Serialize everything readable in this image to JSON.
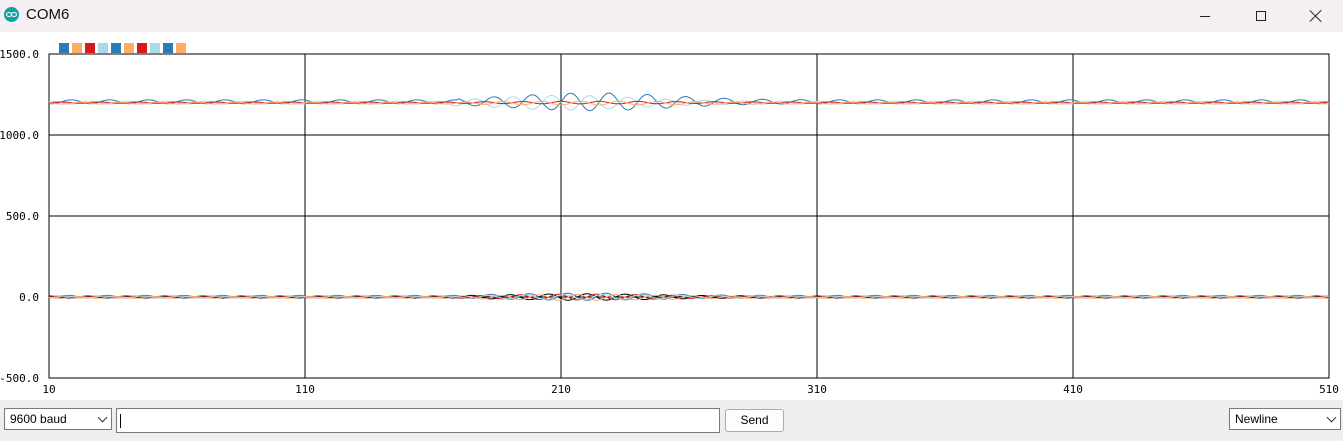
{
  "window": {
    "title": "COM6",
    "icon": "arduino-icon",
    "controls": [
      "minimize-icon",
      "maximize-icon",
      "close-icon"
    ]
  },
  "legend": {
    "swatch_colors": [
      "#2c7bb6",
      "#fdae61",
      "#d7191c",
      "#abd9e9",
      "#2c7bb6",
      "#fdae61",
      "#d7191c",
      "#abd9e9",
      "#2c7bb6",
      "#fdae61"
    ]
  },
  "chart_data": {
    "type": "line",
    "xlim": [
      10,
      510
    ],
    "ylim": [
      -500,
      1500
    ],
    "x_ticks": [
      "10",
      "110",
      "210",
      "310",
      "410",
      "510"
    ],
    "y_ticks": [
      "1500.0",
      "1000.0",
      "500.0",
      "0.0",
      "-500.0"
    ],
    "grid": true,
    "series": [
      {
        "color": "#2c7bb6",
        "baseline": 1205,
        "amplitude": 12,
        "period": 15,
        "phase": 0.0,
        "burst": [
          170,
          320,
          55
        ]
      },
      {
        "color": "#abd9e9",
        "baseline": 1200,
        "amplitude": 9,
        "period": 15,
        "phase": 3.14,
        "burst": [
          165,
          300,
          45
        ]
      },
      {
        "color": "#d7191c",
        "baseline": 1200,
        "amplitude": 4,
        "period": 15,
        "phase": 1.57,
        "burst": [
          170,
          320,
          8
        ]
      },
      {
        "color": "#fdae61",
        "baseline": 1197,
        "amplitude": 6,
        "period": 15,
        "phase": 4.71,
        "burst": [
          170,
          320,
          12
        ]
      },
      {
        "color": "#2c7bb6",
        "baseline": 2,
        "amplitude": 8,
        "period": 15,
        "phase": 0.5,
        "burst": [
          170,
          310,
          22
        ]
      },
      {
        "color": "#000000",
        "baseline": 0,
        "amplitude": 6,
        "period": 15,
        "phase": 3.6,
        "burst": [
          170,
          310,
          20
        ]
      },
      {
        "color": "#d7191c",
        "baseline": 0,
        "amplitude": 5,
        "period": 15,
        "phase": 2.0,
        "burst": [
          170,
          310,
          18
        ]
      },
      {
        "color": "#fdae61",
        "baseline": -2,
        "amplitude": 6,
        "period": 15,
        "phase": 5.2,
        "burst": [
          170,
          310,
          18
        ]
      },
      {
        "color": "#abd9e9",
        "baseline": 0,
        "amplitude": 5,
        "period": 15,
        "phase": 1.0,
        "burst": [
          170,
          310,
          16
        ]
      }
    ]
  },
  "bottom": {
    "baud": "9600 baud",
    "message_value": "",
    "send_label": "Send",
    "line_ending": "Newline"
  }
}
